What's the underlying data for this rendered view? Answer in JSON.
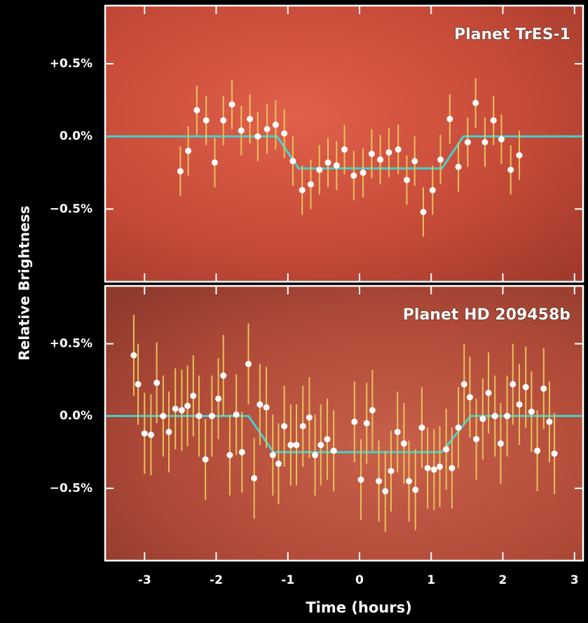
{
  "chart_data": [
    {
      "type": "scatter",
      "title": "Planet TrES-1",
      "y_label": "Relative Brightness",
      "x": [
        -2.5,
        -2.39,
        -2.27,
        -2.14,
        -2.02,
        -1.9,
        -1.78,
        -1.65,
        -1.53,
        -1.42,
        -1.29,
        -1.17,
        -1.05,
        -0.93,
        -0.8,
        -0.68,
        -0.56,
        -0.44,
        -0.32,
        -0.21,
        -0.08,
        0.05,
        0.17,
        0.29,
        0.41,
        0.54,
        0.66,
        0.77,
        0.89,
        1.02,
        1.13,
        1.26,
        1.38,
        1.51,
        1.62,
        1.75,
        1.87,
        1.98,
        2.11,
        2.23
      ],
      "values": [
        -0.24,
        -0.1,
        0.18,
        0.11,
        -0.18,
        0.11,
        0.22,
        0.04,
        0.12,
        0.0,
        0.05,
        0.08,
        0.02,
        -0.17,
        -0.37,
        -0.33,
        -0.23,
        -0.18,
        -0.2,
        -0.09,
        -0.27,
        -0.25,
        -0.12,
        -0.16,
        -0.11,
        -0.09,
        -0.3,
        -0.17,
        -0.52,
        -0.37,
        -0.16,
        0.12,
        -0.21,
        -0.04,
        0.23,
        -0.04,
        0.11,
        -0.02,
        -0.23,
        -0.13
      ],
      "errors": [
        0.17,
        0.17,
        0.17,
        0.17,
        0.17,
        0.17,
        0.17,
        0.17,
        0.17,
        0.17,
        0.17,
        0.17,
        0.17,
        0.17,
        0.17,
        0.17,
        0.17,
        0.17,
        0.17,
        0.17,
        0.17,
        0.17,
        0.17,
        0.17,
        0.17,
        0.17,
        0.17,
        0.17,
        0.17,
        0.17,
        0.17,
        0.17,
        0.17,
        0.17,
        0.17,
        0.17,
        0.17,
        0.17,
        0.17,
        0.17
      ],
      "marker_color": "#ffffff",
      "errorbar_color": "#e6c25a",
      "model": {
        "x": [
          -3.55,
          -1.15,
          -0.85,
          1.15,
          1.45,
          3.12
        ],
        "values": [
          0,
          0,
          -0.22,
          -0.22,
          0,
          0
        ],
        "color": "#3fd3d0"
      },
      "xlim": [
        -3.55,
        3.12
      ],
      "ylim": [
        -1.0,
        0.9
      ],
      "yticks": [
        {
          "value": 0.5,
          "label": "+0.5%"
        },
        {
          "value": 0,
          "label": "0.0%"
        },
        {
          "value": -0.5,
          "label": "−0.5%"
        }
      ]
    },
    {
      "type": "scatter",
      "title": "Planet HD 209458b",
      "x_label": "Time (hours)",
      "x": [
        -3.15,
        -3.09,
        -3.0,
        -2.91,
        -2.83,
        -2.74,
        -2.66,
        -2.57,
        -2.48,
        -2.4,
        -2.32,
        -2.24,
        -2.15,
        -2.06,
        -1.97,
        -1.9,
        -1.81,
        -1.72,
        -1.64,
        -1.55,
        -1.47,
        -1.39,
        -1.3,
        -1.21,
        -1.13,
        -1.05,
        -0.96,
        -0.88,
        -0.79,
        -0.7,
        -0.62,
        -0.54,
        -0.45,
        -0.36,
        -0.07,
        0.02,
        0.1,
        0.18,
        0.27,
        0.36,
        0.44,
        0.53,
        0.62,
        0.69,
        0.78,
        0.87,
        0.95,
        1.04,
        1.12,
        1.21,
        1.29,
        1.38,
        1.46,
        1.54,
        1.63,
        1.72,
        1.8,
        1.89,
        1.97,
        2.06,
        2.14,
        2.23,
        2.32,
        2.4,
        2.48,
        2.57,
        2.65,
        2.72
      ],
      "values": [
        0.42,
        0.22,
        -0.12,
        -0.13,
        0.23,
        0.0,
        -0.11,
        0.05,
        0.04,
        0.07,
        0.14,
        0.0,
        -0.3,
        0.0,
        0.12,
        0.28,
        -0.27,
        0.01,
        -0.25,
        0.36,
        -0.43,
        0.08,
        0.06,
        -0.27,
        -0.33,
        -0.07,
        -0.2,
        -0.2,
        -0.07,
        -0.01,
        -0.27,
        -0.2,
        -0.16,
        -0.24,
        -0.04,
        -0.44,
        -0.05,
        0.04,
        -0.45,
        -0.52,
        -0.38,
        -0.11,
        -0.19,
        -0.45,
        -0.51,
        -0.08,
        -0.36,
        -0.37,
        -0.35,
        -0.23,
        -0.36,
        -0.08,
        0.22,
        0.13,
        -0.16,
        -0.02,
        0.16,
        0.0,
        -0.19,
        0.0,
        0.22,
        0.08,
        0.2,
        0.03,
        -0.24,
        0.19,
        -0.04,
        -0.26
      ],
      "errors": [
        0.28,
        0.28,
        0.28,
        0.28,
        0.28,
        0.28,
        0.28,
        0.28,
        0.28,
        0.28,
        0.28,
        0.28,
        0.28,
        0.28,
        0.28,
        0.28,
        0.28,
        0.28,
        0.28,
        0.28,
        0.28,
        0.28,
        0.28,
        0.28,
        0.28,
        0.28,
        0.28,
        0.28,
        0.28,
        0.28,
        0.28,
        0.28,
        0.28,
        0.28,
        0.28,
        0.28,
        0.28,
        0.28,
        0.28,
        0.28,
        0.28,
        0.28,
        0.28,
        0.28,
        0.28,
        0.28,
        0.28,
        0.28,
        0.28,
        0.28,
        0.28,
        0.28,
        0.28,
        0.28,
        0.28,
        0.28,
        0.28,
        0.28,
        0.28,
        0.28,
        0.28,
        0.28,
        0.28,
        0.28,
        0.28,
        0.28,
        0.28,
        0.28
      ],
      "marker_color": "#ffffff",
      "errorbar_color": "#e6c25a",
      "model": {
        "x": [
          -3.55,
          -1.55,
          -1.2,
          1.15,
          1.55,
          3.12
        ],
        "values": [
          0,
          0,
          -0.25,
          -0.25,
          0,
          0
        ],
        "color": "#3fd3d0"
      },
      "xlim": [
        -3.55,
        3.12
      ],
      "ylim": [
        -1.0,
        0.9
      ],
      "xticks": [
        -3,
        -2,
        -1,
        0,
        1,
        2,
        3
      ],
      "yticks": [
        {
          "value": 0.5,
          "label": "+0.5%"
        },
        {
          "value": 0,
          "label": "0.0%"
        },
        {
          "value": -0.5,
          "label": "−0.5%"
        }
      ]
    }
  ]
}
